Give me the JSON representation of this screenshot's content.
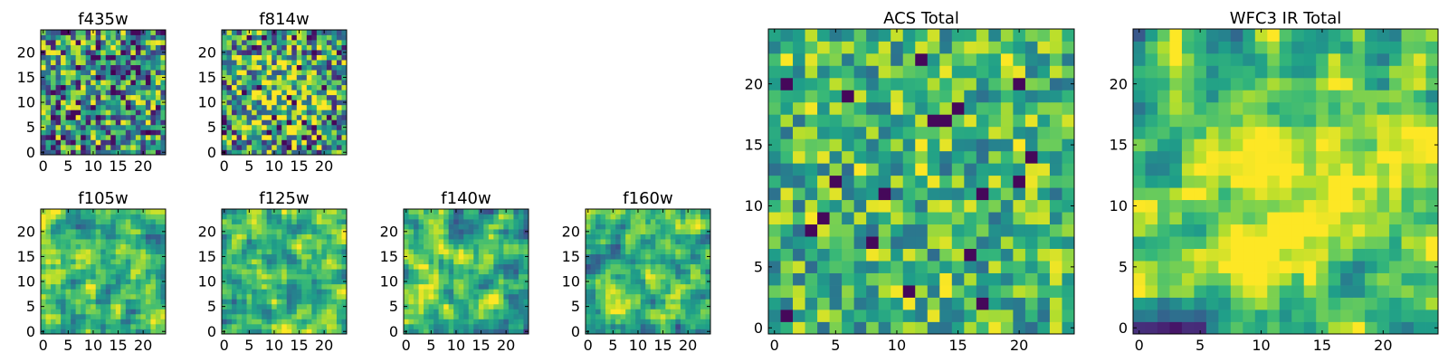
{
  "figure": {
    "colormap": "viridis",
    "grid_size": 25,
    "colors": {
      "low": "#440154",
      "mid": "#21918c",
      "high": "#fde725",
      "frame": "#000000"
    }
  },
  "chart_data": [
    {
      "type": "heatmap",
      "title": "f435w",
      "xticks": [
        "0",
        "5",
        "10",
        "15",
        "20"
      ],
      "yticks": [
        "0",
        "5",
        "10",
        "15",
        "20"
      ],
      "xlim": [
        0,
        25
      ],
      "ylim": [
        0,
        25
      ],
      "texture": "noise",
      "seed": 11
    },
    {
      "type": "heatmap",
      "title": "f814w",
      "xticks": [
        "0",
        "5",
        "10",
        "15",
        "20"
      ],
      "yticks": [
        "0",
        "5",
        "10",
        "15",
        "20"
      ],
      "xlim": [
        0,
        25
      ],
      "ylim": [
        0,
        25
      ],
      "texture": "noise-blob",
      "seed": 23
    },
    {
      "type": "heatmap",
      "title": "f105w",
      "xticks": [
        "0",
        "5",
        "10",
        "15",
        "20"
      ],
      "yticks": [
        "0",
        "5",
        "10",
        "15",
        "20"
      ],
      "xlim": [
        0,
        25
      ],
      "ylim": [
        0,
        25
      ],
      "texture": "smooth",
      "seed": 37
    },
    {
      "type": "heatmap",
      "title": "f125w",
      "xticks": [
        "0",
        "5",
        "10",
        "15",
        "20"
      ],
      "yticks": [
        "0",
        "5",
        "10",
        "15",
        "20"
      ],
      "xlim": [
        0,
        25
      ],
      "ylim": [
        0,
        25
      ],
      "texture": "smooth",
      "seed": 41
    },
    {
      "type": "heatmap",
      "title": "f140w",
      "xticks": [
        "0",
        "5",
        "10",
        "15",
        "20"
      ],
      "yticks": [
        "0",
        "5",
        "10",
        "15",
        "20"
      ],
      "xlim": [
        0,
        25
      ],
      "ylim": [
        0,
        25
      ],
      "texture": "smooth",
      "seed": 53
    },
    {
      "type": "heatmap",
      "title": "f160w",
      "xticks": [
        "0",
        "5",
        "10",
        "15",
        "20"
      ],
      "yticks": [
        "0",
        "5",
        "10",
        "15",
        "20"
      ],
      "xlim": [
        0,
        25
      ],
      "ylim": [
        0,
        25
      ],
      "texture": "smooth",
      "seed": 67
    },
    {
      "type": "heatmap",
      "title": "ACS Total",
      "xticks": [
        "0",
        "5",
        "10",
        "15",
        "20"
      ],
      "yticks": [
        "0",
        "5",
        "10",
        "15",
        "20"
      ],
      "xlim": [
        0,
        25
      ],
      "ylim": [
        0,
        25
      ],
      "texture": "noise-bright",
      "seed": 79
    },
    {
      "type": "heatmap",
      "title": "WFC3 IR Total",
      "xticks": [
        "0",
        "5",
        "10",
        "15",
        "20"
      ],
      "yticks": [
        "0",
        "5",
        "10",
        "15",
        "20"
      ],
      "xlim": [
        0,
        25
      ],
      "ylim": [
        0,
        25
      ],
      "texture": "smooth-blob",
      "seed": 97
    }
  ]
}
